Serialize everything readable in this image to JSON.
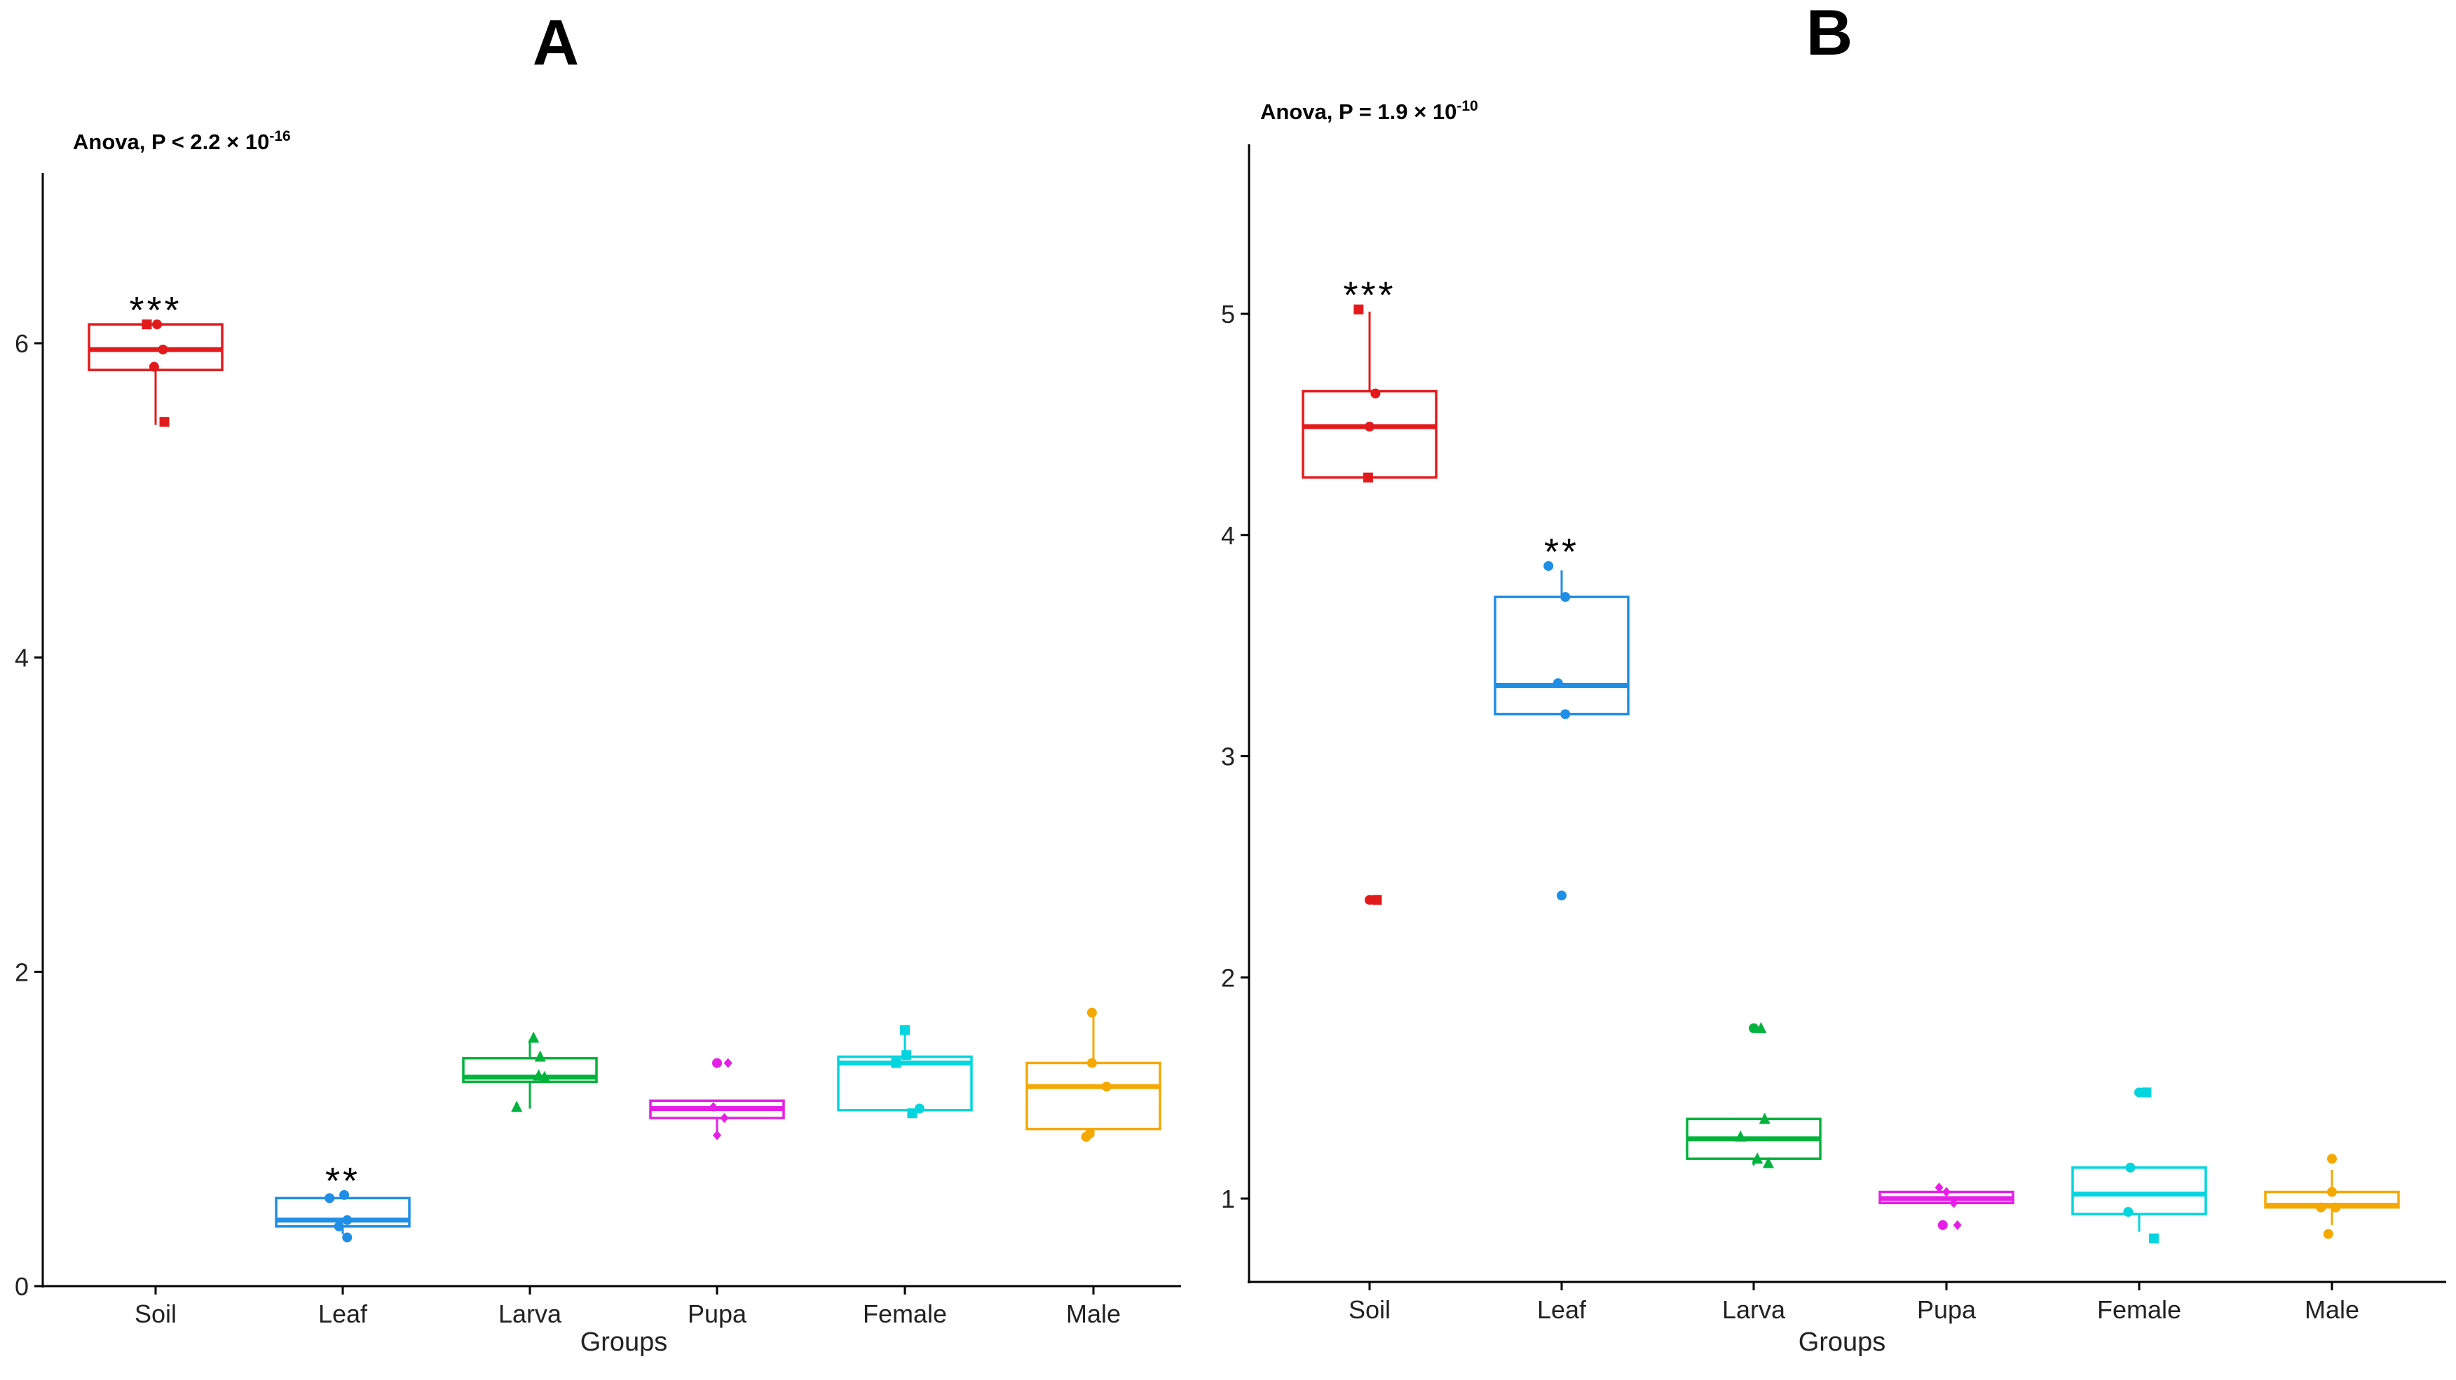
{
  "chart_data": [
    {
      "panel": "A",
      "type": "box",
      "annotation": {
        "base": "Anova, P < 2.2 × 10",
        "exp": "-16"
      },
      "xlabel": "Groups",
      "ylabel": "",
      "ylim": [
        0,
        7
      ],
      "yticks": [
        0,
        2,
        4,
        6
      ],
      "ytick_labels": [
        "0",
        "2",
        "4",
        "6"
      ],
      "categories": [
        "Soil",
        "Leaf",
        "Larva",
        "Pupa",
        "Female",
        "Male"
      ],
      "boxes": [
        {
          "group": "Soil",
          "color": "#e31a1c",
          "min": 5.48,
          "q1": 5.83,
          "median": 5.96,
          "q3": 6.12,
          "max": 6.12,
          "sig": "***",
          "points": [
            [
              -0.12,
              6.12,
              "square"
            ],
            [
              0.02,
              6.12,
              "circle"
            ],
            [
              0.1,
              5.96,
              "circle"
            ],
            [
              -0.02,
              5.85,
              "circle"
            ],
            [
              0.12,
              5.5,
              "square"
            ]
          ]
        },
        {
          "group": "Leaf",
          "color": "#1f8ee6",
          "min": 0.33,
          "q1": 0.38,
          "median": 0.42,
          "q3": 0.56,
          "max": 0.58,
          "sig": "**",
          "points": [
            [
              -0.18,
              0.56,
              "circle"
            ],
            [
              0.02,
              0.58,
              "circle"
            ],
            [
              -0.05,
              0.38,
              "circle"
            ],
            [
              0.06,
              0.42,
              "circle"
            ],
            [
              0.06,
              0.31,
              "circle"
            ]
          ]
        },
        {
          "group": "Larva",
          "color": "#00b33c",
          "min": 1.13,
          "q1": 1.3,
          "median": 1.33,
          "q3": 1.45,
          "max": 1.57,
          "sig": "",
          "points": [
            [
              0.05,
              1.58,
              "triangle"
            ],
            [
              0.14,
              1.46,
              "triangle"
            ],
            [
              0.12,
              1.34,
              "triangle"
            ],
            [
              0.2,
              1.33,
              "triangle"
            ],
            [
              -0.18,
              1.14,
              "triangle"
            ]
          ]
        },
        {
          "group": "Pupa",
          "color": "#e61ee6",
          "min": 0.97,
          "q1": 1.07,
          "median": 1.13,
          "q3": 1.18,
          "max": 1.18,
          "sig": "",
          "points": [
            [
              0.0,
              1.42,
              "circle"
            ],
            [
              0.15,
              1.42,
              "diamond"
            ],
            [
              -0.05,
              1.14,
              "diamond"
            ],
            [
              0.1,
              1.07,
              "diamond"
            ],
            [
              0.0,
              0.96,
              "diamond"
            ]
          ]
        },
        {
          "group": "Female",
          "color": "#00d5e0",
          "min": 1.12,
          "q1": 1.12,
          "median": 1.42,
          "q3": 1.46,
          "max": 1.62,
          "sig": "",
          "points": [
            [
              0.0,
              1.63,
              "square"
            ],
            [
              -0.12,
              1.42,
              "square"
            ],
            [
              0.02,
              1.47,
              "square"
            ],
            [
              0.2,
              1.13,
              "circle"
            ],
            [
              0.1,
              1.1,
              "square"
            ]
          ]
        },
        {
          "group": "Male",
          "color": "#f5a800",
          "min": 0.97,
          "q1": 1.0,
          "median": 1.27,
          "q3": 1.42,
          "max": 1.73,
          "sig": "",
          "points": [
            [
              -0.02,
              1.74,
              "circle"
            ],
            [
              -0.02,
              1.42,
              "circle"
            ],
            [
              0.18,
              1.27,
              "circle"
            ],
            [
              -0.05,
              0.97,
              "circle"
            ],
            [
              -0.1,
              0.95,
              "circle"
            ]
          ]
        }
      ]
    },
    {
      "panel": "B",
      "type": "box",
      "annotation": {
        "base": "Anova, P = 1.9 × 10",
        "exp": "-10"
      },
      "xlabel": "Groups",
      "ylabel": "",
      "ylim": [
        0.6,
        5.75
      ],
      "yticks": [
        1,
        2,
        3,
        4,
        5
      ],
      "ytick_labels": [
        "1",
        "2",
        "3",
        "4",
        "5"
      ],
      "categories": [
        "Soil",
        "Leaf",
        "Larva",
        "Pupa",
        "Female",
        "Male"
      ],
      "boxes": [
        {
          "group": "Soil",
          "color": "#e31a1c",
          "min": 4.26,
          "q1": 4.26,
          "median": 4.49,
          "q3": 4.65,
          "max": 5.01,
          "sig": "***",
          "points": [
            [
              -0.15,
              5.02,
              "square"
            ],
            [
              0.08,
              4.64,
              "circle"
            ],
            [
              0.0,
              4.49,
              "circle"
            ],
            [
              -0.02,
              4.26,
              "square"
            ],
            [
              0.0,
              2.35,
              "circle"
            ],
            [
              0.1,
              2.35,
              "square"
            ]
          ]
        },
        {
          "group": "Leaf",
          "color": "#1f8ee6",
          "min": 3.19,
          "q1": 3.19,
          "median": 3.32,
          "q3": 3.72,
          "max": 3.84,
          "sig": "**",
          "points": [
            [
              -0.18,
              3.86,
              "circle"
            ],
            [
              0.05,
              3.72,
              "circle"
            ],
            [
              -0.05,
              3.33,
              "circle"
            ],
            [
              0.05,
              3.19,
              "circle"
            ],
            [
              0.0,
              2.37,
              "circle"
            ]
          ]
        },
        {
          "group": "Larva",
          "color": "#00b33c",
          "min": 1.15,
          "q1": 1.18,
          "median": 1.27,
          "q3": 1.36,
          "max": 1.36,
          "sig": "",
          "points": [
            [
              0.0,
              1.77,
              "circle"
            ],
            [
              0.1,
              1.77,
              "triangle"
            ],
            [
              0.15,
              1.36,
              "triangle"
            ],
            [
              -0.18,
              1.28,
              "triangle"
            ],
            [
              0.05,
              1.18,
              "triangle"
            ],
            [
              0.2,
              1.16,
              "triangle"
            ]
          ]
        },
        {
          "group": "Pupa",
          "color": "#e61ee6",
          "min": 0.98,
          "q1": 0.98,
          "median": 1.0,
          "q3": 1.03,
          "max": 1.03,
          "sig": "",
          "points": [
            [
              -0.1,
              1.05,
              "diamond"
            ],
            [
              0.0,
              1.03,
              "diamond"
            ],
            [
              0.1,
              0.98,
              "diamond"
            ],
            [
              -0.05,
              0.88,
              "circle"
            ],
            [
              0.15,
              0.88,
              "diamond"
            ]
          ]
        },
        {
          "group": "Female",
          "color": "#00d5e0",
          "min": 0.85,
          "q1": 0.93,
          "median": 1.02,
          "q3": 1.14,
          "max": 1.14,
          "sig": "",
          "points": [
            [
              0.0,
              1.48,
              "circle"
            ],
            [
              0.1,
              1.48,
              "square"
            ],
            [
              -0.12,
              1.14,
              "circle"
            ],
            [
              -0.15,
              0.94,
              "circle"
            ],
            [
              0.2,
              0.82,
              "square"
            ]
          ]
        },
        {
          "group": "Male",
          "color": "#f5a800",
          "min": 0.88,
          "q1": 0.96,
          "median": 0.97,
          "q3": 1.03,
          "max": 1.13,
          "sig": "",
          "points": [
            [
              0.0,
              1.18,
              "circle"
            ],
            [
              0.0,
              1.03,
              "circle"
            ],
            [
              -0.15,
              0.96,
              "circle"
            ],
            [
              0.05,
              0.96,
              "circle"
            ],
            [
              -0.05,
              0.84,
              "circle"
            ]
          ]
        }
      ]
    }
  ]
}
